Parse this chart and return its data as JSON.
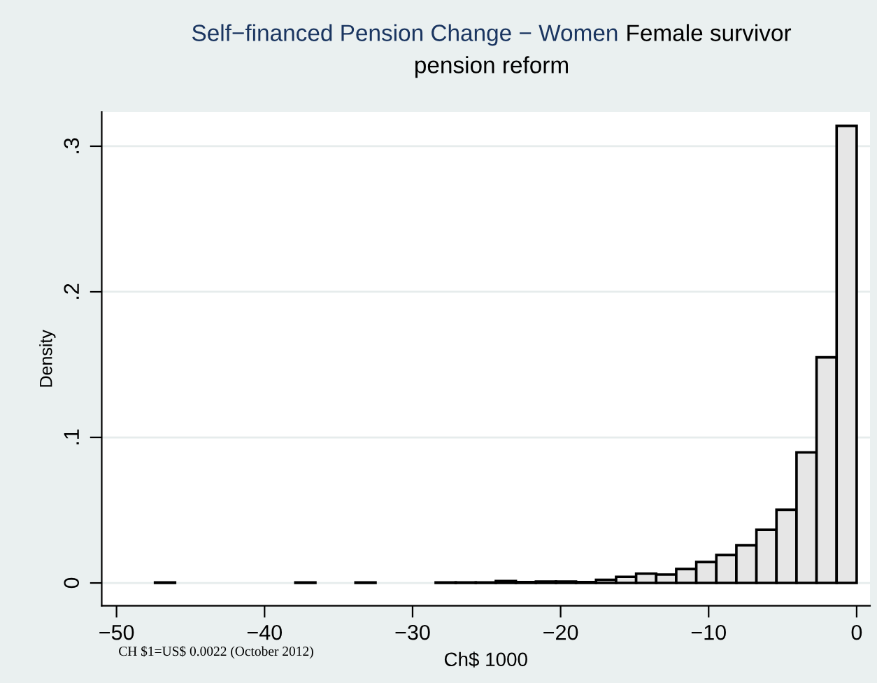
{
  "chart_data": {
    "type": "histogram",
    "title": "Self−financed Pension Change − Women",
    "subtitle": "Female survivor pension reform",
    "xlabel": "Ch$ 1000",
    "ylabel": "Density",
    "annotations": [
      "CH $1=US$ 0.0022 (October 2012)"
    ],
    "bins": [
      -47.4,
      -46.046,
      -44.691,
      -43.337,
      -41.983,
      -40.629,
      -39.274,
      -37.92,
      -36.566,
      -35.211,
      -33.857,
      -32.503,
      -31.149,
      -29.794,
      -28.44,
      -27.086,
      -25.731,
      -24.377,
      -23.023,
      -21.669,
      -20.314,
      -18.96,
      -17.606,
      -16.251,
      -14.897,
      -13.543,
      -12.189,
      -10.834,
      -9.48,
      -8.126,
      -6.771,
      -5.417,
      -4.063,
      -2.709,
      -1.354,
      0
    ],
    "values": [
      0.0003,
      0,
      0,
      0,
      0,
      0,
      0,
      0.0003,
      0,
      0,
      0.0003,
      0,
      0,
      0,
      0.0003,
      0.0003,
      0.0003,
      0.0013,
      0.0006,
      0.001,
      0.001,
      0.0006,
      0.0022,
      0.0042,
      0.0064,
      0.0058,
      0.0096,
      0.0144,
      0.0192,
      0.0259,
      0.0365,
      0.0503,
      0.0897,
      0.155,
      0.314
    ],
    "color": "#e6e6e6",
    "xlim": [
      -51,
      0.9
    ],
    "ylim": [
      -0.0157,
      0.3235
    ],
    "xticks": [
      {
        "value": -50,
        "label": "−50"
      },
      {
        "value": -40,
        "label": "−40"
      },
      {
        "value": -30,
        "label": "−30"
      },
      {
        "value": -20,
        "label": "−20"
      },
      {
        "value": -10,
        "label": "−10"
      },
      0
    ],
    "yticks": [
      0,
      {
        "value": 0.1,
        "label": ".1"
      },
      {
        "value": 0.2,
        "label": ".2"
      },
      {
        "value": 0.3,
        "label": ".3"
      }
    ],
    "grid": "y"
  }
}
